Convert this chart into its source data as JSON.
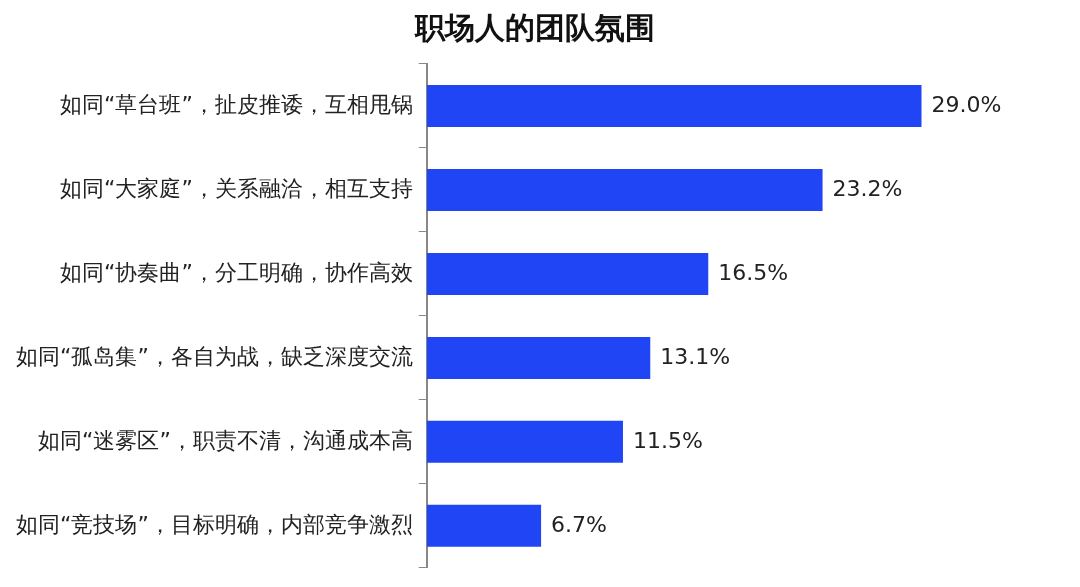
{
  "chart_data": {
    "type": "bar",
    "orientation": "horizontal",
    "title": "职场人的团队氛围",
    "categories": [
      "如同“草台班”，扯皮推诿，互相甩锅",
      "如同“大家庭”，关系融洽，相互支持",
      "如同“协奏曲”，分工明确，协作高效",
      "如同“孤岛集”，各自为战，缺乏深度交流",
      "如同“迷雾区”，职责不清，沟通成本高",
      "如同“竞技场”，目标明确，内部竞争激烈"
    ],
    "values": [
      29.0,
      23.2,
      16.5,
      13.1,
      11.5,
      6.7
    ],
    "value_labels": [
      "29.0%",
      "23.2%",
      "16.5%",
      "13.1%",
      "11.5%",
      "6.7%"
    ],
    "color": "#1f45f5"
  }
}
